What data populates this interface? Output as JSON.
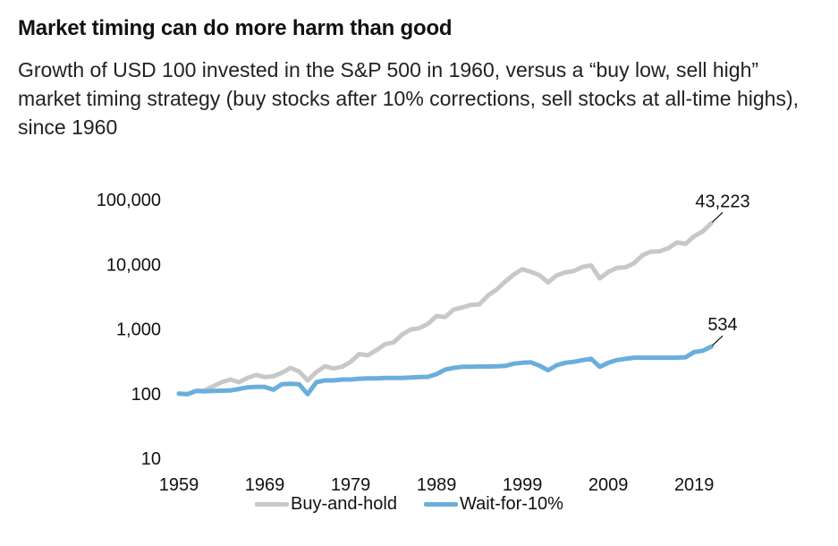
{
  "header": {
    "title": "Market timing can do more harm than good",
    "subtitle": "Growth of USD 100 invested in the S&P 500 in 1960, versus a “buy low, sell high” market timing strategy (buy stocks after 10% corrections, sell stocks at all-time highs), since 1960"
  },
  "chart_data": {
    "type": "line",
    "title": "",
    "xlabel": "",
    "ylabel": "",
    "y_scale": "log",
    "ylim": [
      10,
      100000
    ],
    "xlim": [
      1959,
      2022
    ],
    "x_ticks": [
      "1959",
      "1969",
      "1979",
      "1989",
      "1999",
      "2009",
      "2019"
    ],
    "y_ticks": [
      "100,000",
      "10,000",
      "1,000",
      "100",
      "10"
    ],
    "grid": false,
    "legend_position": "bottom",
    "series": [
      {
        "name": "Buy-and-hold",
        "color": "#c8c8c8",
        "end_label": "43,223",
        "points": [
          [
            1959,
            100
          ],
          [
            1960,
            98
          ],
          [
            1961,
            110
          ],
          [
            1962,
            112
          ],
          [
            1963,
            130
          ],
          [
            1964,
            150
          ],
          [
            1965,
            165
          ],
          [
            1966,
            150
          ],
          [
            1967,
            175
          ],
          [
            1968,
            195
          ],
          [
            1969,
            180
          ],
          [
            1970,
            185
          ],
          [
            1971,
            210
          ],
          [
            1972,
            250
          ],
          [
            1973,
            220
          ],
          [
            1974,
            160
          ],
          [
            1975,
            215
          ],
          [
            1976,
            265
          ],
          [
            1977,
            245
          ],
          [
            1978,
            260
          ],
          [
            1979,
            310
          ],
          [
            1980,
            410
          ],
          [
            1981,
            390
          ],
          [
            1982,
            470
          ],
          [
            1983,
            580
          ],
          [
            1984,
            620
          ],
          [
            1985,
            820
          ],
          [
            1986,
            980
          ],
          [
            1987,
            1030
          ],
          [
            1988,
            1200
          ],
          [
            1989,
            1580
          ],
          [
            1990,
            1530
          ],
          [
            1991,
            2000
          ],
          [
            1992,
            2150
          ],
          [
            1993,
            2360
          ],
          [
            1994,
            2400
          ],
          [
            1995,
            3300
          ],
          [
            1996,
            4050
          ],
          [
            1997,
            5400
          ],
          [
            1998,
            6950
          ],
          [
            1999,
            8400
          ],
          [
            2000,
            7650
          ],
          [
            2001,
            6750
          ],
          [
            2002,
            5250
          ],
          [
            2003,
            6750
          ],
          [
            2004,
            7500
          ],
          [
            2005,
            7870
          ],
          [
            2006,
            9100
          ],
          [
            2007,
            9600
          ],
          [
            2008,
            6050
          ],
          [
            2009,
            7650
          ],
          [
            2010,
            8800
          ],
          [
            2011,
            9000
          ],
          [
            2012,
            10400
          ],
          [
            2013,
            13800
          ],
          [
            2014,
            15700
          ],
          [
            2015,
            15900
          ],
          [
            2016,
            17800
          ],
          [
            2017,
            21700
          ],
          [
            2018,
            20700
          ],
          [
            2019,
            27200
          ],
          [
            2020,
            32200
          ],
          [
            2021,
            43223
          ]
        ]
      },
      {
        "name": "Wait-for-10%",
        "color": "#6aaedc",
        "end_label": "534",
        "points": [
          [
            1959,
            100
          ],
          [
            1960,
            98
          ],
          [
            1961,
            110
          ],
          [
            1962,
            108
          ],
          [
            1963,
            110
          ],
          [
            1964,
            111
          ],
          [
            1965,
            112
          ],
          [
            1966,
            118
          ],
          [
            1967,
            125
          ],
          [
            1968,
            127
          ],
          [
            1969,
            127
          ],
          [
            1970,
            115
          ],
          [
            1971,
            140
          ],
          [
            1972,
            142
          ],
          [
            1973,
            140
          ],
          [
            1974,
            98
          ],
          [
            1975,
            150
          ],
          [
            1976,
            160
          ],
          [
            1977,
            160
          ],
          [
            1978,
            165
          ],
          [
            1979,
            165
          ],
          [
            1980,
            170
          ],
          [
            1981,
            172
          ],
          [
            1982,
            172
          ],
          [
            1983,
            175
          ],
          [
            1984,
            175
          ],
          [
            1985,
            175
          ],
          [
            1986,
            178
          ],
          [
            1987,
            180
          ],
          [
            1988,
            182
          ],
          [
            1989,
            200
          ],
          [
            1990,
            235
          ],
          [
            1991,
            250
          ],
          [
            1992,
            260
          ],
          [
            1993,
            260
          ],
          [
            1994,
            262
          ],
          [
            1995,
            262
          ],
          [
            1996,
            265
          ],
          [
            1997,
            268
          ],
          [
            1998,
            290
          ],
          [
            1999,
            300
          ],
          [
            2000,
            305
          ],
          [
            2001,
            270
          ],
          [
            2002,
            230
          ],
          [
            2003,
            275
          ],
          [
            2004,
            300
          ],
          [
            2005,
            310
          ],
          [
            2006,
            330
          ],
          [
            2007,
            345
          ],
          [
            2008,
            260
          ],
          [
            2009,
            300
          ],
          [
            2010,
            330
          ],
          [
            2011,
            345
          ],
          [
            2012,
            360
          ],
          [
            2013,
            360
          ],
          [
            2014,
            360
          ],
          [
            2015,
            360
          ],
          [
            2016,
            360
          ],
          [
            2017,
            360
          ],
          [
            2018,
            365
          ],
          [
            2019,
            440
          ],
          [
            2020,
            460
          ],
          [
            2021,
            534
          ]
        ]
      }
    ]
  }
}
